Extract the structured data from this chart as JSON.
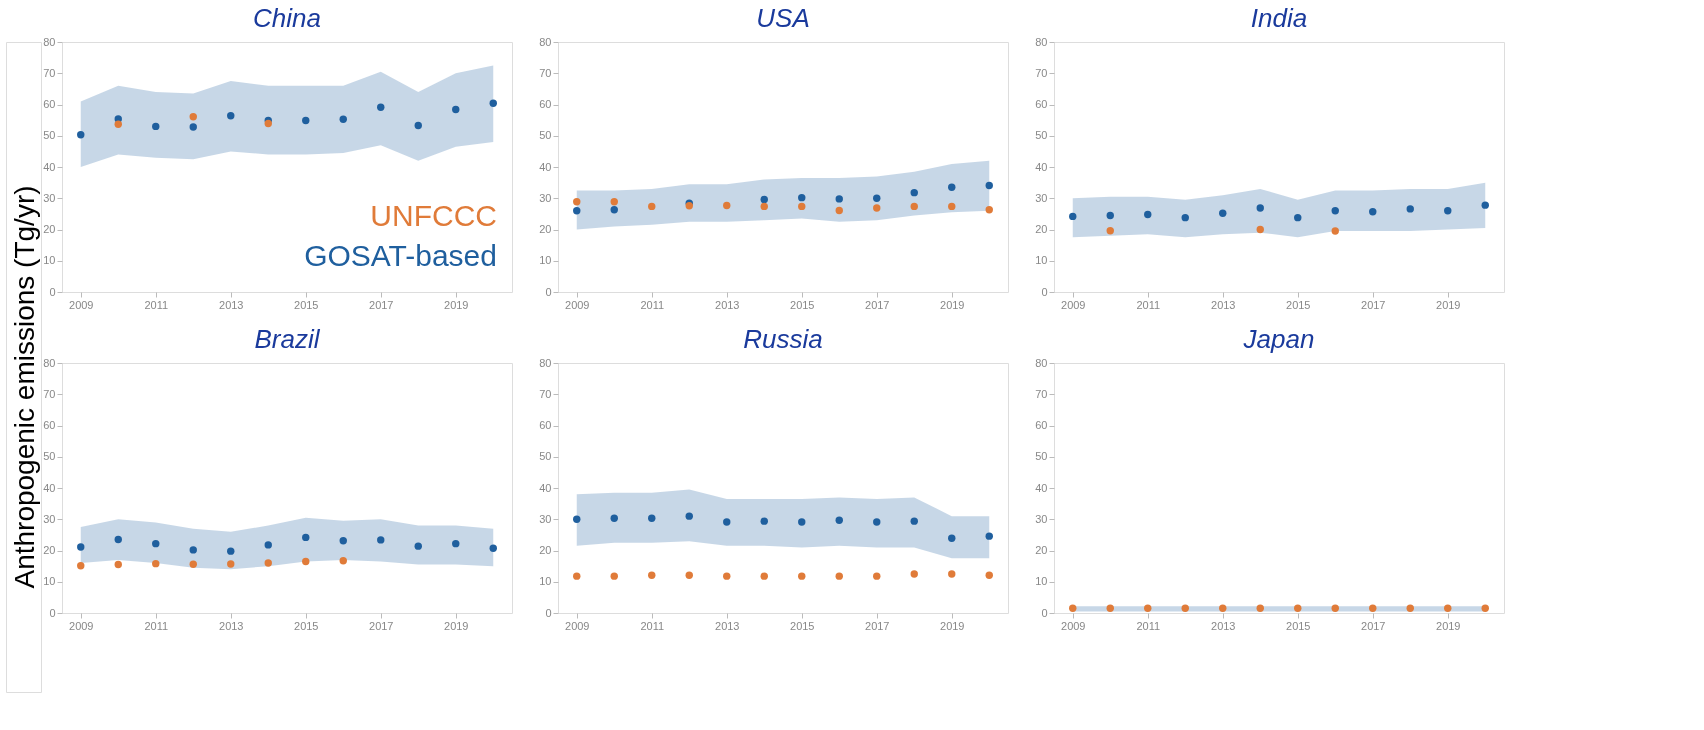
{
  "chart_data": [
    {
      "type": "scatter",
      "title": "China",
      "ylabel": "Anthropogenic emissions (Tg/yr)",
      "legend": "bottom right",
      "marker": "circle",
      "x": [
        2009,
        2010,
        2011,
        2012,
        2013,
        2014,
        2015,
        2016,
        2017,
        2018,
        2019,
        2020
      ],
      "xlim": [
        2008.5,
        2020.5
      ],
      "xticks": [
        2009,
        2011,
        2013,
        2015,
        2017,
        2019
      ],
      "ylim": [
        0,
        80
      ],
      "yticks": [
        0,
        10,
        20,
        30,
        40,
        50,
        60,
        70,
        80
      ],
      "series": [
        {
          "name": "GOSAT-based",
          "color": "#1f5f9e",
          "values": [
            50.3,
            55.4,
            53,
            52.8,
            56.4,
            54.9,
            54.9,
            55.3,
            59.1,
            53.3,
            58.4,
            60.4
          ],
          "lower": [
            40,
            44,
            43,
            42.5,
            45,
            44,
            44,
            44.5,
            47,
            42,
            46.5,
            48
          ],
          "upper": [
            61,
            66,
            64,
            63.5,
            67.5,
            66,
            66,
            66,
            70.5,
            64,
            70,
            72.5
          ]
        },
        {
          "name": "UNFCCC",
          "color": "#e07b39",
          "values": [
            null,
            53.7,
            null,
            56.1,
            null,
            53.9,
            null,
            null,
            null,
            null,
            null,
            null
          ]
        }
      ]
    },
    {
      "type": "scatter",
      "title": "USA",
      "marker": "circle",
      "x": [
        2009,
        2010,
        2011,
        2012,
        2013,
        2014,
        2015,
        2016,
        2017,
        2018,
        2019,
        2020
      ],
      "xlim": [
        2008.5,
        2020.5
      ],
      "xticks": [
        2009,
        2011,
        2013,
        2015,
        2017,
        2019
      ],
      "ylim": [
        0,
        80
      ],
      "yticks": [
        0,
        10,
        20,
        30,
        40,
        50,
        60,
        70,
        80
      ],
      "series": [
        {
          "color": "#1f5f9e",
          "values": [
            26,
            26.3,
            null,
            28.4,
            null,
            29.6,
            30.2,
            29.8,
            30,
            31.8,
            33.5,
            34.1
          ],
          "lower": [
            20,
            21,
            21.5,
            22.5,
            22.5,
            23,
            23.5,
            22.5,
            23,
            24.5,
            25.5,
            26
          ],
          "upper": [
            32.5,
            32.5,
            33,
            34.5,
            34.5,
            36,
            36.5,
            36.5,
            37,
            38.5,
            41,
            42
          ]
        },
        {
          "color": "#e07b39",
          "values": [
            28.9,
            28.9,
            27.4,
            27.6,
            27.7,
            27.4,
            27.4,
            26.1,
            26.9,
            27.4,
            27.4,
            26.3
          ]
        }
      ]
    },
    {
      "type": "scatter",
      "title": "India",
      "marker": "circle",
      "x": [
        2009,
        2010,
        2011,
        2012,
        2013,
        2014,
        2015,
        2016,
        2017,
        2018,
        2019,
        2020
      ],
      "xlim": [
        2008.5,
        2020.5
      ],
      "xticks": [
        2009,
        2011,
        2013,
        2015,
        2017,
        2019
      ],
      "ylim": [
        0,
        80
      ],
      "yticks": [
        0,
        10,
        20,
        30,
        40,
        50,
        60,
        70,
        80
      ],
      "series": [
        {
          "color": "#1f5f9e",
          "values": [
            24.2,
            24.5,
            24.8,
            23.8,
            25.2,
            26.9,
            23.8,
            26,
            25.7,
            26.6,
            26,
            27.8
          ],
          "lower": [
            17.5,
            18,
            18.5,
            17.5,
            18.5,
            19,
            17.5,
            19.5,
            19.5,
            19.5,
            20,
            20.5
          ],
          "upper": [
            30,
            30.5,
            30.5,
            29.5,
            31,
            33,
            29.5,
            32.5,
            32.5,
            33,
            33,
            35
          ]
        },
        {
          "color": "#e07b39",
          "values": [
            null,
            19.6,
            null,
            null,
            null,
            20,
            null,
            19.5,
            null,
            null,
            null,
            null
          ]
        }
      ]
    },
    {
      "type": "scatter",
      "title": "Brazil",
      "marker": "circle",
      "x": [
        2009,
        2010,
        2011,
        2012,
        2013,
        2014,
        2015,
        2016,
        2017,
        2018,
        2019,
        2020
      ],
      "xlim": [
        2008.5,
        2020.5
      ],
      "xticks": [
        2009,
        2011,
        2013,
        2015,
        2017,
        2019
      ],
      "ylim": [
        0,
        80
      ],
      "yticks": [
        0,
        10,
        20,
        30,
        40,
        50,
        60,
        70,
        80
      ],
      "series": [
        {
          "color": "#1f5f9e",
          "values": [
            21.1,
            23.5,
            22.2,
            20.2,
            19.8,
            21.8,
            24.2,
            23.1,
            23.4,
            21.4,
            22.2,
            20.7
          ],
          "lower": [
            16,
            17,
            16,
            14.5,
            14,
            15,
            16.5,
            17,
            16.5,
            15.5,
            15.5,
            15
          ],
          "upper": [
            27.5,
            30,
            29,
            27,
            26,
            28,
            30.5,
            29.5,
            30,
            28,
            28,
            27
          ]
        },
        {
          "color": "#e07b39",
          "values": [
            15.1,
            15.5,
            15.8,
            15.6,
            15.7,
            16,
            16.5,
            16.7,
            null,
            null,
            null,
            null
          ]
        }
      ]
    },
    {
      "type": "scatter",
      "title": "Russia",
      "marker": "circle",
      "x": [
        2009,
        2010,
        2011,
        2012,
        2013,
        2014,
        2015,
        2016,
        2017,
        2018,
        2019,
        2020
      ],
      "xlim": [
        2008.5,
        2020.5
      ],
      "xticks": [
        2009,
        2011,
        2013,
        2015,
        2017,
        2019
      ],
      "ylim": [
        0,
        80
      ],
      "yticks": [
        0,
        10,
        20,
        30,
        40,
        50,
        60,
        70,
        80
      ],
      "series": [
        {
          "color": "#1f5f9e",
          "values": [
            30,
            30.3,
            30.3,
            31,
            29.1,
            29.4,
            29.1,
            29.7,
            29.1,
            29.4,
            23.9,
            24.6
          ],
          "lower": [
            21.5,
            22.5,
            22.5,
            23,
            21.5,
            21.5,
            21,
            21.5,
            21,
            21,
            17.5,
            17.5
          ],
          "upper": [
            38,
            38.5,
            38.5,
            39.5,
            36.5,
            36.5,
            36.5,
            37,
            36.5,
            37,
            31,
            31
          ]
        },
        {
          "color": "#e07b39",
          "values": [
            11.8,
            11.8,
            12.1,
            12.1,
            11.8,
            11.8,
            11.8,
            11.8,
            11.8,
            12.5,
            12.5,
            12.1
          ]
        }
      ]
    },
    {
      "type": "scatter",
      "title": "Japan",
      "marker": "circle",
      "x": [
        2009,
        2010,
        2011,
        2012,
        2013,
        2014,
        2015,
        2016,
        2017,
        2018,
        2019,
        2020
      ],
      "xlim": [
        2008.5,
        2020.5
      ],
      "xticks": [
        2009,
        2011,
        2013,
        2015,
        2017,
        2019
      ],
      "ylim": [
        0,
        80
      ],
      "yticks": [
        0,
        10,
        20,
        30,
        40,
        50,
        60,
        70,
        80
      ],
      "series": [
        {
          "color": "#1f5f9e",
          "values": [
            null,
            null,
            null,
            null,
            null,
            null,
            null,
            null,
            null,
            null,
            null,
            null
          ],
          "lower": [
            0.5,
            0.5,
            0.5,
            0.5,
            0.5,
            0.5,
            0.5,
            0.5,
            0.5,
            0.5,
            0.5,
            0.5
          ],
          "upper": [
            2.2,
            2.2,
            2.2,
            2.2,
            2.2,
            2.2,
            2.2,
            2.2,
            2.2,
            2.2,
            2.2,
            2.2
          ]
        },
        {
          "color": "#e07b39",
          "values": [
            1.5,
            1.5,
            1.5,
            1.5,
            1.5,
            1.5,
            1.5,
            1.5,
            1.5,
            1.5,
            1.5,
            1.5
          ]
        }
      ]
    }
  ]
}
